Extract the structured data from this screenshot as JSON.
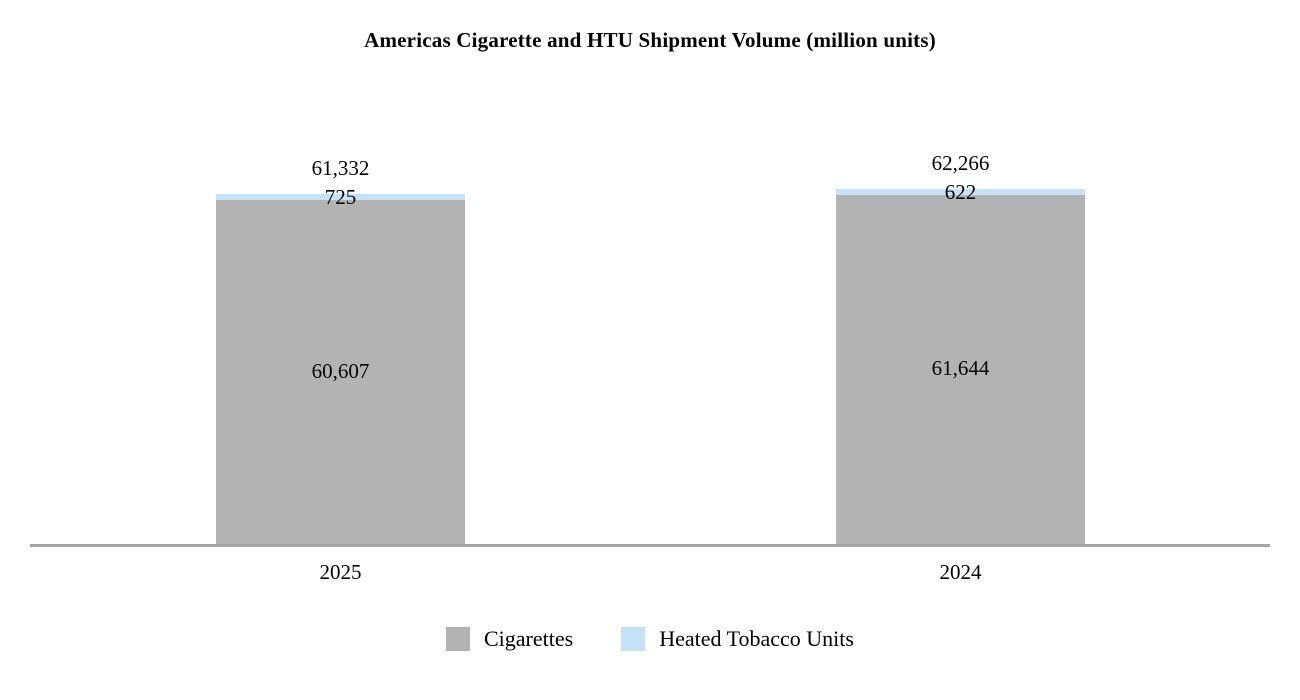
{
  "chart_data": {
    "type": "bar",
    "stacked": true,
    "title": "Americas Cigarette and HTU Shipment Volume (million units)",
    "categories": [
      "2025",
      "2024"
    ],
    "series": [
      {
        "name": "Cigarettes",
        "color": "#b3b3b3",
        "values": [
          60607,
          61644
        ]
      },
      {
        "name": "Heated Tobacco Units",
        "color": "#c5e2f8",
        "values": [
          725,
          622
        ]
      }
    ],
    "totals": [
      61332,
      62266
    ],
    "data_labels": {
      "totals": [
        "61,332",
        "62,266"
      ],
      "heated_tobacco_units": [
        "725",
        "622"
      ],
      "cigarettes": [
        "60,607",
        "61,644"
      ]
    },
    "legend": {
      "position": "bottom",
      "entries": [
        "Cigarettes",
        "Heated Tobacco Units"
      ]
    },
    "axis_line_color": "#a6a6a6",
    "background": "#ffffff",
    "grid": false,
    "ylim_units": [
      0,
      62266
    ]
  }
}
